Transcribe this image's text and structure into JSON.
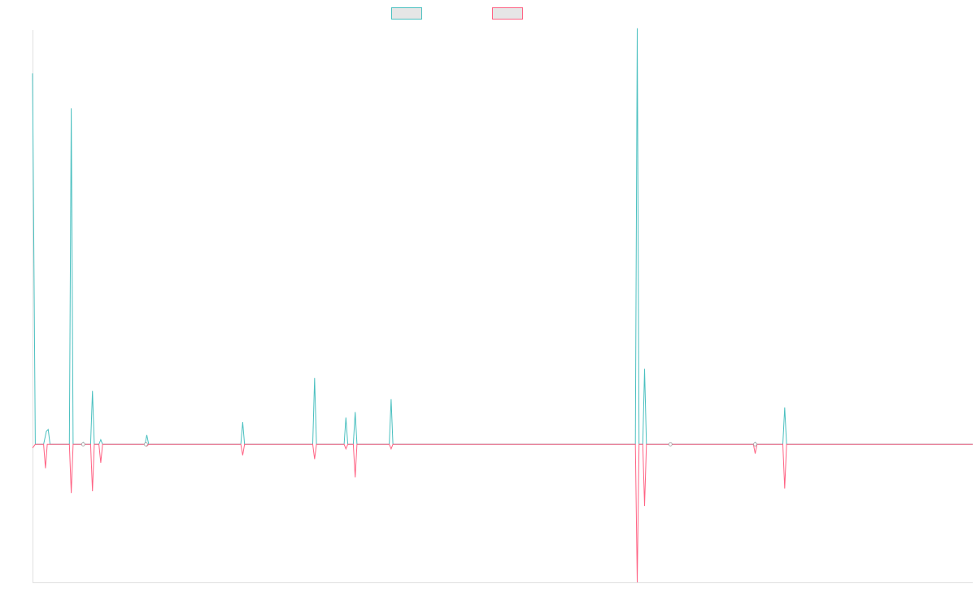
{
  "chart_data": {
    "type": "line",
    "title": "",
    "xlabel": "",
    "ylabel": "",
    "legend_position": "top-center",
    "grid": false,
    "xlim": [
      0,
      102
    ],
    "ylim": [
      -150,
      450
    ],
    "series": [
      {
        "color": "#4bc0c0",
        "points": [
          [
            0,
            403
          ],
          [
            0.3,
            0
          ],
          [
            1.2,
            0
          ],
          [
            1.5,
            14
          ],
          [
            1.7,
            16
          ],
          [
            1.9,
            0
          ],
          [
            4,
            0
          ],
          [
            4.2,
            365
          ],
          [
            4.4,
            0
          ],
          [
            5.3,
            0
          ],
          [
            5.5,
            2
          ],
          [
            5.7,
            0
          ],
          [
            6.3,
            0
          ],
          [
            6.5,
            58
          ],
          [
            6.7,
            0
          ],
          [
            7.2,
            0
          ],
          [
            7.4,
            5
          ],
          [
            7.6,
            0
          ],
          [
            12.2,
            0
          ],
          [
            12.4,
            10
          ],
          [
            12.6,
            0
          ],
          [
            22.6,
            0
          ],
          [
            22.8,
            24
          ],
          [
            23,
            0
          ],
          [
            30.4,
            0
          ],
          [
            30.6,
            72
          ],
          [
            30.8,
            0
          ],
          [
            33.8,
            0
          ],
          [
            34,
            29
          ],
          [
            34.2,
            0
          ],
          [
            34.8,
            0
          ],
          [
            35,
            35
          ],
          [
            35.2,
            0
          ],
          [
            38.7,
            0
          ],
          [
            38.9,
            49
          ],
          [
            39.1,
            0
          ],
          [
            65.4,
            0
          ],
          [
            65.6,
            452
          ],
          [
            65.8,
            0
          ],
          [
            66.2,
            0
          ],
          [
            66.4,
            82
          ],
          [
            66.6,
            0
          ],
          [
            69,
            0
          ],
          [
            69.2,
            1
          ],
          [
            69.4,
            0
          ],
          [
            78.2,
            0
          ],
          [
            78.4,
            2
          ],
          [
            78.6,
            0
          ],
          [
            81.4,
            0
          ],
          [
            81.6,
            40
          ],
          [
            81.8,
            0
          ],
          [
            102,
            0
          ]
        ]
      },
      {
        "color": "#ff6384",
        "points": [
          [
            0,
            -4
          ],
          [
            0.3,
            0
          ],
          [
            1.2,
            0
          ],
          [
            1.4,
            -26
          ],
          [
            1.6,
            0
          ],
          [
            4,
            0
          ],
          [
            4.2,
            -53
          ],
          [
            4.4,
            0
          ],
          [
            6.3,
            0
          ],
          [
            6.5,
            -51
          ],
          [
            6.7,
            0
          ],
          [
            7.2,
            0
          ],
          [
            7.4,
            -20
          ],
          [
            7.6,
            0
          ],
          [
            12.2,
            0
          ],
          [
            12.4,
            -2
          ],
          [
            12.6,
            0
          ],
          [
            22.6,
            0
          ],
          [
            22.8,
            -12
          ],
          [
            23,
            0
          ],
          [
            30.4,
            0
          ],
          [
            30.6,
            -16
          ],
          [
            30.8,
            0
          ],
          [
            33.8,
            0
          ],
          [
            34,
            -5
          ],
          [
            34.2,
            0
          ],
          [
            34.8,
            0
          ],
          [
            35,
            -36
          ],
          [
            35.2,
            0
          ],
          [
            38.7,
            0
          ],
          [
            38.9,
            -5
          ],
          [
            39.1,
            0
          ],
          [
            65.4,
            0
          ],
          [
            65.6,
            -150
          ],
          [
            65.8,
            0
          ],
          [
            66.2,
            0
          ],
          [
            66.4,
            -67
          ],
          [
            66.6,
            0
          ],
          [
            69,
            0
          ],
          [
            69.2,
            -1
          ],
          [
            69.4,
            0
          ],
          [
            78.2,
            0
          ],
          [
            78.4,
            -10
          ],
          [
            78.6,
            0
          ],
          [
            81.4,
            0
          ],
          [
            81.6,
            -48
          ],
          [
            81.8,
            0
          ],
          [
            102,
            0
          ]
        ]
      }
    ]
  }
}
